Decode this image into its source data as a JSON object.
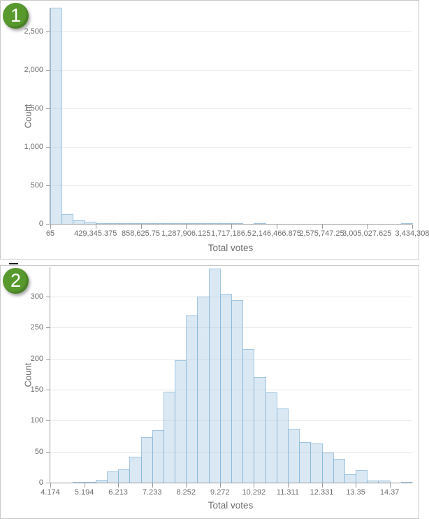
{
  "colors": {
    "badge_green": "#58992e",
    "bar_fill": "rgba(170,205,229,0.45)",
    "bar_stroke": "rgba(125,175,211,0.6)",
    "gridline": "#e9e9e9",
    "axis_line": "#9b9b9b",
    "tick_text": "#6e6e6e"
  },
  "chart_data": [
    {
      "badge": "1",
      "type": "bar",
      "xlabel": "Total votes",
      "ylabel": "Count",
      "x_min": 65,
      "x_max": 3434308,
      "bin_width": 107320.09,
      "bins": 32,
      "ylim": [
        0,
        2810
      ],
      "grid": true,
      "legend": "none",
      "y_ticks": [
        {
          "v": 0,
          "label": "0"
        },
        {
          "v": 500,
          "label": "500"
        },
        {
          "v": 1000,
          "label": "1,000"
        },
        {
          "v": 1500,
          "label": "1,500"
        },
        {
          "v": 2000,
          "label": "2,000"
        },
        {
          "v": 2500,
          "label": "2,500"
        }
      ],
      "x_tick_labels": [
        "65",
        "429,345.375",
        "858,625.75",
        "1,287,906.125",
        "1,717,186.5",
        "2,146,466.875",
        "2,575,747.25",
        "3,005,027.625",
        "3,434,308"
      ],
      "bins_per_x_tick": 4,
      "values": [
        2810,
        125,
        48,
        23,
        10,
        6,
        4,
        3,
        2,
        8,
        3,
        2,
        1,
        1,
        5,
        1,
        1,
        0,
        1,
        0,
        0,
        0,
        0,
        0,
        0,
        0,
        0,
        0,
        0,
        0,
        0,
        1
      ],
      "bar_fill": "rgba(170,205,229,0.45)",
      "bar_stroke": "rgba(125,175,211,0.6)"
    },
    {
      "badge": "2",
      "type": "bar",
      "xlabel": "Total votes",
      "ylabel": "Count",
      "x_min": 4.174,
      "x_max": 15.049,
      "bin_width": 0.3398,
      "bins": 32,
      "ylim": [
        0,
        347.5
      ],
      "grid": true,
      "legend": "none",
      "y_ticks": [
        {
          "v": 0,
          "label": "0"
        },
        {
          "v": 50,
          "label": "50"
        },
        {
          "v": 100,
          "label": "100"
        },
        {
          "v": 150,
          "label": "150"
        },
        {
          "v": 200,
          "label": "200"
        },
        {
          "v": 250,
          "label": "250"
        },
        {
          "v": 300,
          "label": "300"
        }
      ],
      "x_tick_labels": [
        "4.174",
        "5.194",
        "6.213",
        "7.233",
        "8.252",
        "9.272",
        "10.292",
        "11.311",
        "12.331",
        "13.35",
        "14.37"
      ],
      "bins_per_x_tick": 3,
      "values": [
        0,
        0,
        1,
        1,
        4,
        18,
        22,
        42,
        73,
        85,
        147,
        197,
        270,
        300,
        345,
        305,
        295,
        215,
        170,
        145,
        120,
        87,
        65,
        63,
        48,
        38,
        13,
        20,
        3,
        3,
        0,
        1
      ],
      "bar_fill": "rgba(170,205,229,0.45)",
      "bar_stroke": "rgba(125,175,211,0.6)"
    }
  ]
}
